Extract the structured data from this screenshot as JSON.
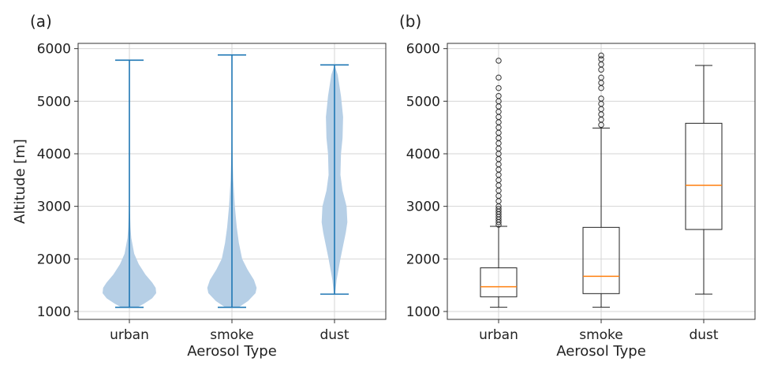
{
  "chart_data": [
    {
      "panel_label": "(a)",
      "type": "violin",
      "categories": [
        "urban",
        "smoke",
        "dust"
      ],
      "xlabel": "Aerosol Type",
      "ylabel": "Altitude [m]",
      "ylim": [
        850,
        6100
      ],
      "yticks": [
        1000,
        2000,
        3000,
        4000,
        5000,
        6000
      ],
      "grid": true,
      "color": "#1f77b4",
      "fill_color": "#b6cfe6",
      "violins": [
        {
          "name": "urban",
          "min": 1080,
          "max": 5780,
          "profile": [
            [
              1080,
              0.3
            ],
            [
              1150,
              0.55
            ],
            [
              1250,
              0.85
            ],
            [
              1350,
              1.0
            ],
            [
              1450,
              0.98
            ],
            [
              1550,
              0.85
            ],
            [
              1700,
              0.6
            ],
            [
              1900,
              0.35
            ],
            [
              2100,
              0.18
            ],
            [
              2400,
              0.07
            ],
            [
              2600,
              0.04
            ],
            [
              3000,
              0.015
            ],
            [
              4000,
              0.007
            ],
            [
              5000,
              0.004
            ],
            [
              5780,
              0.0
            ]
          ]
        },
        {
          "name": "smoke",
          "min": 1080,
          "max": 5880,
          "profile": [
            [
              1080,
              0.25
            ],
            [
              1200,
              0.6
            ],
            [
              1350,
              0.88
            ],
            [
              1450,
              0.92
            ],
            [
              1600,
              0.82
            ],
            [
              1800,
              0.58
            ],
            [
              2000,
              0.38
            ],
            [
              2300,
              0.26
            ],
            [
              2600,
              0.18
            ],
            [
              3000,
              0.11
            ],
            [
              3500,
              0.05
            ],
            [
              4000,
              0.02
            ],
            [
              4500,
              0.008
            ],
            [
              5000,
              0.004
            ],
            [
              5880,
              0.0
            ]
          ]
        },
        {
          "name": "dust",
          "min": 1330,
          "max": 5690,
          "profile": [
            [
              1330,
              0.02
            ],
            [
              1600,
              0.08
            ],
            [
              2000,
              0.22
            ],
            [
              2500,
              0.42
            ],
            [
              2700,
              0.48
            ],
            [
              3000,
              0.45
            ],
            [
              3300,
              0.3
            ],
            [
              3600,
              0.22
            ],
            [
              4000,
              0.24
            ],
            [
              4300,
              0.3
            ],
            [
              4700,
              0.32
            ],
            [
              5100,
              0.24
            ],
            [
              5500,
              0.12
            ],
            [
              5690,
              0.0
            ]
          ]
        }
      ]
    },
    {
      "panel_label": "(b)",
      "type": "box",
      "categories": [
        "urban",
        "smoke",
        "dust"
      ],
      "xlabel": "Aerosol Type",
      "ylabel": "",
      "ylim": [
        850,
        6100
      ],
      "yticks": [
        1000,
        2000,
        3000,
        4000,
        5000,
        6000
      ],
      "grid": true,
      "box_color": "#222222",
      "median_color": "#ff7f0e",
      "boxes": [
        {
          "name": "urban",
          "whisker_low": 1080,
          "q1": 1280,
          "median": 1470,
          "q3": 1830,
          "whisker_high": 2620,
          "outliers": [
            2650,
            2700,
            2750,
            2800,
            2850,
            2900,
            2950,
            3000,
            3100,
            3200,
            3300,
            3400,
            3500,
            3600,
            3700,
            3800,
            3900,
            4000,
            4100,
            4200,
            4300,
            4400,
            4500,
            4600,
            4700,
            4800,
            4900,
            5000,
            5100,
            5250,
            5450,
            5770
          ]
        },
        {
          "name": "smoke",
          "whisker_low": 1080,
          "q1": 1340,
          "median": 1670,
          "q3": 2600,
          "whisker_high": 4490,
          "outliers": [
            4550,
            4650,
            4750,
            4850,
            4950,
            5050,
            5250,
            5350,
            5450,
            5600,
            5700,
            5800,
            5870
          ]
        },
        {
          "name": "dust",
          "whisker_low": 1330,
          "q1": 2560,
          "median": 3400,
          "q3": 4580,
          "whisker_high": 5680,
          "outliers": []
        }
      ]
    }
  ]
}
